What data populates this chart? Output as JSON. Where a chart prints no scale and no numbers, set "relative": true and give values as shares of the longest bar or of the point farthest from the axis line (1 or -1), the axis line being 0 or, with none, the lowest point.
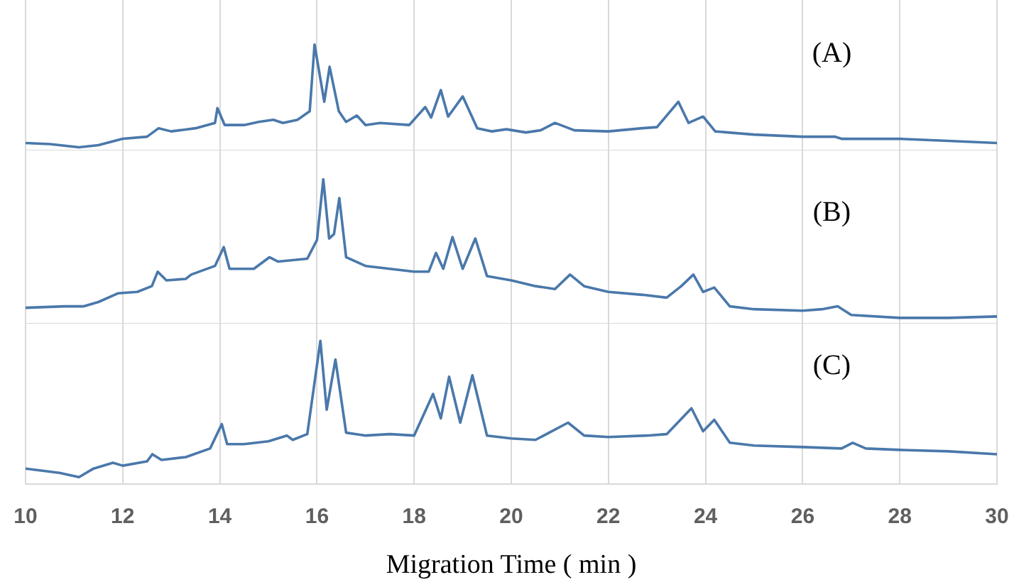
{
  "chart_data": [
    {
      "type": "line",
      "relative": true,
      "annotations": [
        "(A)"
      ],
      "xlim": [
        10,
        30
      ],
      "xticks": [
        10,
        12,
        14,
        16,
        18,
        20,
        22,
        24,
        26,
        28,
        30
      ],
      "tick_labels": false,
      "grid": "x",
      "series": [
        {
          "color": "#4a78aa",
          "x": [
            10,
            10.5,
            11.1,
            11.5,
            12,
            12.5,
            12.74,
            13,
            13.5,
            13.9,
            13.95,
            14.1,
            14.5,
            14.8,
            15.1,
            15.3,
            15.6,
            15.85,
            15.95,
            16.15,
            16.26,
            16.45,
            16.6,
            16.82,
            17,
            17.3,
            17.9,
            18.23,
            18.35,
            18.55,
            18.7,
            19,
            19.3,
            19.6,
            19.9,
            20.3,
            20.6,
            20.9,
            21.3,
            22,
            22.7,
            23,
            23.44,
            23.65,
            23.95,
            24.2,
            25,
            26,
            26.66,
            26.8,
            28,
            29,
            30
          ],
          "values": [
            0.07,
            0.06,
            0.03,
            0.05,
            0.11,
            0.13,
            0.21,
            0.18,
            0.21,
            0.26,
            0.4,
            0.24,
            0.24,
            0.27,
            0.29,
            0.26,
            0.29,
            0.37,
            1,
            0.46,
            0.79,
            0.37,
            0.27,
            0.33,
            0.24,
            0.26,
            0.24,
            0.41,
            0.31,
            0.57,
            0.32,
            0.51,
            0.21,
            0.18,
            0.2,
            0.17,
            0.19,
            0.26,
            0.19,
            0.18,
            0.21,
            0.22,
            0.46,
            0.26,
            0.32,
            0.18,
            0.15,
            0.13,
            0.13,
            0.11,
            0.11,
            0.09,
            0.07
          ]
        }
      ]
    },
    {
      "type": "line",
      "relative": true,
      "annotations": [
        "(B)"
      ],
      "xlim": [
        10,
        30
      ],
      "xticks": [
        10,
        12,
        14,
        16,
        18,
        20,
        22,
        24,
        26,
        28,
        30
      ],
      "tick_labels": false,
      "grid": "x",
      "series": [
        {
          "color": "#4a78aa",
          "x": [
            10,
            10.8,
            11.2,
            11.5,
            11.9,
            12.3,
            12.6,
            12.72,
            12.9,
            13.3,
            13.41,
            13.9,
            14.08,
            14.2,
            14.7,
            15.02,
            15.2,
            15.5,
            15.8,
            16,
            16.13,
            16.25,
            16.35,
            16.46,
            16.6,
            17,
            17.5,
            18,
            18.3,
            18.45,
            18.6,
            18.79,
            19,
            19.26,
            19.5,
            20,
            20.5,
            20.9,
            21.21,
            21.5,
            22,
            22.7,
            23.2,
            23.5,
            23.75,
            23.95,
            24.18,
            24.5,
            25,
            26,
            26.4,
            26.72,
            27,
            28,
            29,
            30
          ],
          "values": [
            0.11,
            0.12,
            0.12,
            0.15,
            0.21,
            0.22,
            0.26,
            0.36,
            0.3,
            0.31,
            0.34,
            0.4,
            0.53,
            0.38,
            0.38,
            0.46,
            0.43,
            0.44,
            0.45,
            0.58,
            1,
            0.59,
            0.62,
            0.87,
            0.46,
            0.4,
            0.38,
            0.36,
            0.36,
            0.49,
            0.38,
            0.6,
            0.38,
            0.59,
            0.33,
            0.3,
            0.26,
            0.24,
            0.34,
            0.26,
            0.22,
            0.2,
            0.18,
            0.26,
            0.34,
            0.22,
            0.25,
            0.12,
            0.1,
            0.09,
            0.1,
            0.12,
            0.06,
            0.04,
            0.04,
            0.05
          ]
        }
      ]
    },
    {
      "type": "line",
      "relative": true,
      "annotations": [
        "(C)"
      ],
      "xlabel": "Migration Time ( min )",
      "xlim": [
        10,
        30
      ],
      "xticks": [
        10,
        12,
        14,
        16,
        18,
        20,
        22,
        24,
        26,
        28,
        30
      ],
      "grid": "x",
      "series": [
        {
          "color": "#4a78aa",
          "x": [
            10,
            10.7,
            11.1,
            11.4,
            11.8,
            12,
            12.5,
            12.61,
            12.8,
            13.3,
            13.8,
            14.04,
            14.15,
            14.5,
            15,
            15.38,
            15.5,
            15.8,
            16.07,
            16.2,
            16.38,
            16.6,
            17,
            17.5,
            18,
            18.39,
            18.55,
            18.72,
            18.95,
            19.2,
            19.5,
            20,
            20.5,
            21.17,
            21.5,
            22,
            22.8,
            23.2,
            23.71,
            23.95,
            24.18,
            24.5,
            25,
            26,
            26.8,
            27.03,
            27.3,
            28,
            29,
            30
          ],
          "values": [
            0.11,
            0.08,
            0.05,
            0.11,
            0.15,
            0.13,
            0.16,
            0.21,
            0.17,
            0.19,
            0.25,
            0.42,
            0.28,
            0.28,
            0.3,
            0.34,
            0.31,
            0.35,
            1,
            0.52,
            0.87,
            0.36,
            0.34,
            0.35,
            0.34,
            0.63,
            0.46,
            0.75,
            0.43,
            0.76,
            0.34,
            0.32,
            0.31,
            0.43,
            0.34,
            0.33,
            0.34,
            0.35,
            0.53,
            0.37,
            0.45,
            0.29,
            0.27,
            0.26,
            0.25,
            0.29,
            0.25,
            0.24,
            0.23,
            0.21
          ]
        }
      ]
    }
  ]
}
